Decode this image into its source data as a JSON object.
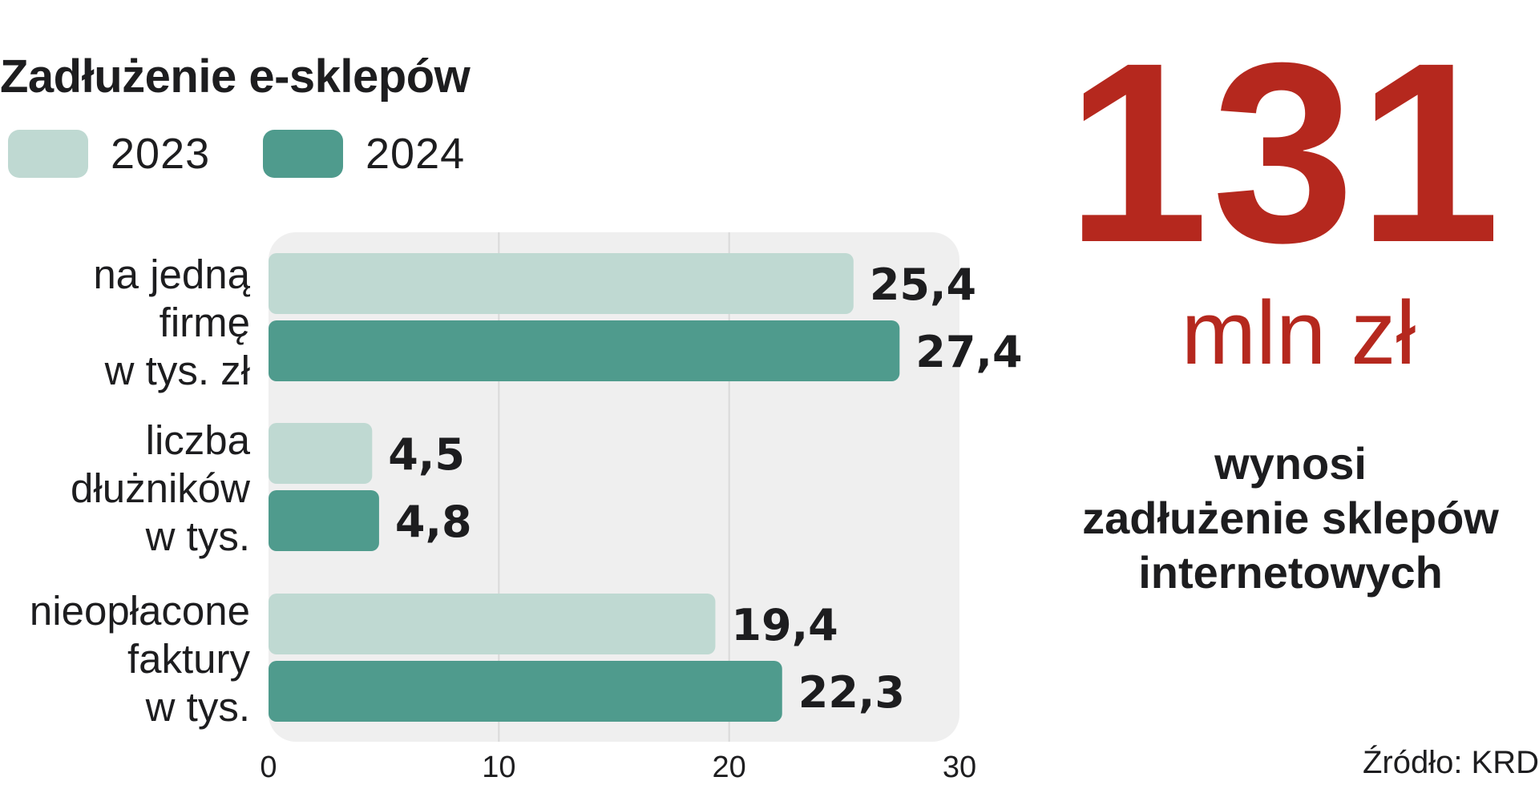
{
  "colors": {
    "y2023": "#bfd9d2",
    "y2024": "#4f9b8d",
    "plot_bg": "#efefef",
    "accent_red": "#b5281e"
  },
  "chart_data": {
    "type": "bar",
    "orientation": "horizontal",
    "title": "Zadłużenie e-sklepów",
    "categories": [
      "na jedną\nfirmę\nw tys. zł",
      "liczba\ndłużników\nw tys.",
      "nieopłacone\nfaktury\nw tys."
    ],
    "series": [
      {
        "name": "2023",
        "values": [
          25.4,
          4.5,
          19.4
        ],
        "labels": [
          "25,4",
          "4,5",
          "19,4"
        ]
      },
      {
        "name": "2024",
        "values": [
          27.4,
          4.8,
          22.3
        ],
        "labels": [
          "27,4",
          "4,8",
          "22,3"
        ]
      }
    ],
    "xlim": [
      0,
      30
    ],
    "xticks": [
      0,
      10,
      20,
      30
    ],
    "grid": true,
    "legend": "top-left"
  },
  "highlight": {
    "number": "131",
    "unit": "mln zł",
    "caption": "wynosi\nzadłużenie sklepów\ninternetowych"
  },
  "source": "Źródło: KRD"
}
